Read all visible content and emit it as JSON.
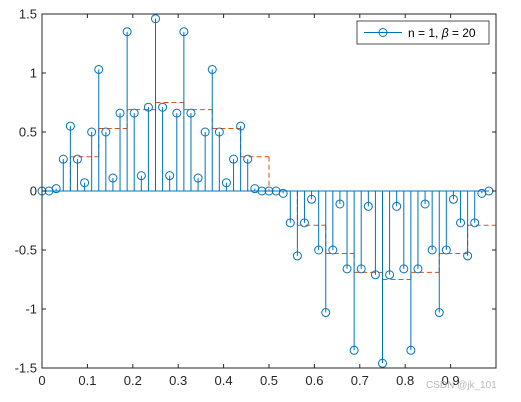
{
  "chart_data": {
    "type": "stem",
    "title": "",
    "xlabel": "",
    "ylabel": "",
    "xlim": [
      0,
      1
    ],
    "ylim": [
      -1.5,
      1.5
    ],
    "grid": false,
    "legend_position": "top-right",
    "xticks": [
      0,
      0.1,
      0.2,
      0.3,
      0.4,
      0.5,
      0.6,
      0.7,
      0.8,
      0.9
    ],
    "xtick_labels": [
      "0",
      "0.1",
      "0.2",
      "0.3",
      "0.4",
      "0.5",
      "0.6",
      "0.7",
      "0.8",
      "0.9"
    ],
    "yticks": [
      -1.5,
      -1,
      -0.5,
      0,
      0.5,
      1,
      1.5
    ],
    "ytick_labels": [
      "-1.5",
      "-1",
      "-0.5",
      "0",
      "0.5",
      "1",
      "1.5"
    ],
    "legend": [
      {
        "label_prefix": "n = 1, ",
        "label_symbol": "β",
        "label_suffix": " = 20",
        "color": "#0072BD"
      }
    ],
    "series": [
      {
        "kind": "stem",
        "color": "#0072BD",
        "x": [
          0,
          0.0156,
          0.0312,
          0.0469,
          0.0625,
          0.0781,
          0.0938,
          0.1094,
          0.125,
          0.1406,
          0.1562,
          0.1719,
          0.1875,
          0.2031,
          0.2188,
          0.2344,
          0.25,
          0.2656,
          0.2812,
          0.2969,
          0.3125,
          0.3281,
          0.3438,
          0.3594,
          0.375,
          0.3906,
          0.4062,
          0.4219,
          0.4375,
          0.4531,
          0.4688,
          0.4844,
          0.5,
          0.5156,
          0.5312,
          0.5469,
          0.5625,
          0.5781,
          0.5938,
          0.6094,
          0.625,
          0.6406,
          0.6562,
          0.6719,
          0.6875,
          0.7031,
          0.7188,
          0.7344,
          0.75,
          0.7656,
          0.7812,
          0.7969,
          0.8125,
          0.8281,
          0.8438,
          0.8594,
          0.875,
          0.8906,
          0.9062,
          0.9219,
          0.9375,
          0.9531,
          0.9688,
          0.9844
        ],
        "y": [
          0,
          0,
          0.02,
          0.27,
          0.55,
          0.27,
          0.07,
          0.5,
          1.03,
          0.5,
          0.11,
          0.66,
          1.35,
          0.66,
          0.13,
          0.71,
          1.46,
          0.71,
          0.13,
          0.66,
          1.35,
          0.66,
          0.11,
          0.5,
          1.03,
          0.5,
          0.07,
          0.27,
          0.55,
          0.27,
          0.02,
          0,
          0,
          0,
          -0.02,
          -0.27,
          -0.55,
          -0.27,
          -0.07,
          -0.5,
          -1.03,
          -0.5,
          -0.11,
          -0.66,
          -1.35,
          -0.66,
          -0.13,
          -0.71,
          -1.46,
          -0.71,
          -0.13,
          -0.66,
          -1.35,
          -0.66,
          -0.11,
          -0.5,
          -1.03,
          -0.5,
          -0.07,
          -0.27,
          -0.55,
          -0.27,
          -0.02,
          0
        ]
      },
      {
        "kind": "stairs",
        "color": "#D95319",
        "dash": "dashed",
        "x": [
          0,
          0.0625,
          0.125,
          0.1875,
          0.25,
          0.3125,
          0.375,
          0.4375,
          0.5,
          0.5625,
          0.625,
          0.6875,
          0.75,
          0.8125,
          0.875,
          0.9375,
          1.0
        ],
        "y": [
          0,
          0.29,
          0.53,
          0.69,
          0.75,
          0.69,
          0.53,
          0.29,
          0,
          -0.29,
          -0.53,
          -0.69,
          -0.75,
          -0.69,
          -0.53,
          -0.29,
          0
        ]
      }
    ]
  },
  "watermark": "CSDN @jk_101"
}
